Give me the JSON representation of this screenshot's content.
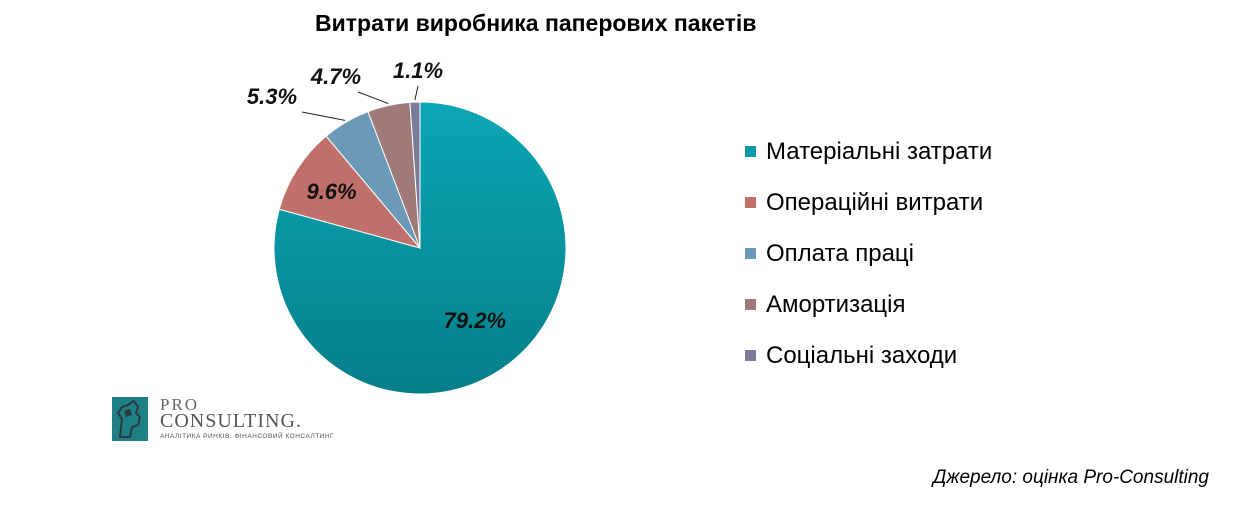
{
  "chart_data": {
    "type": "pie",
    "title": "Витрати виробника паперових пакетів",
    "categories": [
      "Матеріальні затрати",
      "Операційні витрати",
      "Оплата праці",
      "Амортизація",
      "Соціальні заходи"
    ],
    "values": [
      79.2,
      9.6,
      5.3,
      4.7,
      1.1
    ],
    "data_labels": [
      "79.2%",
      "9.6%",
      "5.3%",
      "4.7%",
      "1.1%"
    ],
    "colors": [
      "#0a9aa8",
      "#c0706a",
      "#6a9ab8",
      "#a07a78",
      "#7a7a9a"
    ],
    "legend_position": "right"
  },
  "source": "Джерело: оцінка Pro-Consulting",
  "logo": {
    "line1": "PRO",
    "line2": "CONSULTING.",
    "tagline": "АНАЛІТИКА РИНКІВ. ФІНАНСОВИЙ КОНСАЛТИНГ"
  }
}
